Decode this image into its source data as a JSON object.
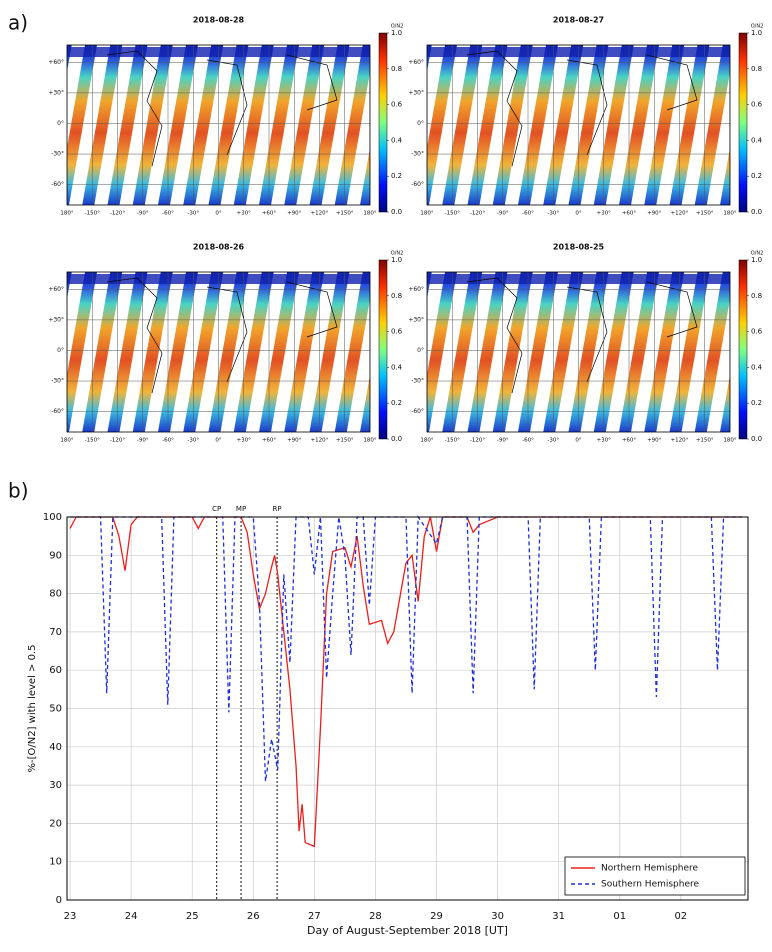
{
  "panel_labels": [
    "a)",
    "b)"
  ],
  "chart_data": [
    {
      "type": "map",
      "title": "2018-08-28",
      "colorbar_label": "O/N2",
      "clim": [
        0,
        1
      ],
      "cticks": [
        {
          "value": 0,
          "label": "0.0"
        },
        {
          "value": 0.2,
          "label": "0.2"
        },
        {
          "value": 0.4,
          "label": "0.4"
        },
        {
          "value": 0.6,
          "label": "0.6"
        },
        {
          "value": 0.8,
          "label": "0.8"
        },
        {
          "value": 1,
          "label": "1.0"
        }
      ],
      "xlim": [
        -180,
        180
      ],
      "ylim": [
        -80,
        77
      ],
      "xticks": [
        {
          "value": -180,
          "label": "180°"
        },
        {
          "value": -150,
          "label": "-150°"
        },
        {
          "value": -120,
          "label": "-120°"
        },
        {
          "value": -90,
          "label": "-90°"
        },
        {
          "value": -60,
          "label": "-60°"
        },
        {
          "value": -30,
          "label": "-30°"
        },
        {
          "value": 0,
          "label": "0°"
        },
        {
          "value": 30,
          "label": "+30°"
        },
        {
          "value": 60,
          "label": "+60°"
        },
        {
          "value": 90,
          "label": "+90°"
        },
        {
          "value": 120,
          "label": "+120°"
        },
        {
          "value": 150,
          "label": "+150°"
        },
        {
          "value": 180,
          "label": "180°"
        }
      ],
      "yticks": [
        {
          "value": 60,
          "label": "+60°"
        },
        {
          "value": 30,
          "label": "+30°"
        },
        {
          "value": 0,
          "label": "0°"
        },
        {
          "value": -30,
          "label": "-30°"
        },
        {
          "value": -60,
          "label": "-60°"
        }
      ]
    },
    {
      "type": "map",
      "title": "2018-08-27",
      "colorbar_label": "O/N2",
      "clim": [
        0,
        1
      ],
      "cticks": [
        {
          "value": 0,
          "label": "0.0"
        },
        {
          "value": 0.2,
          "label": "0.2"
        },
        {
          "value": 0.4,
          "label": "0.4"
        },
        {
          "value": 0.6,
          "label": "0.6"
        },
        {
          "value": 0.8,
          "label": "0.8"
        },
        {
          "value": 1,
          "label": "1.0"
        }
      ],
      "xlim": [
        -180,
        180
      ],
      "ylim": [
        -80,
        77
      ],
      "xticks": [
        {
          "value": -180,
          "label": "180°"
        },
        {
          "value": -150,
          "label": "-150°"
        },
        {
          "value": -120,
          "label": "-120°"
        },
        {
          "value": -90,
          "label": "-90°"
        },
        {
          "value": -60,
          "label": "-60°"
        },
        {
          "value": -30,
          "label": "-30°"
        },
        {
          "value": 0,
          "label": "0°"
        },
        {
          "value": 30,
          "label": "+30°"
        },
        {
          "value": 60,
          "label": "+60°"
        },
        {
          "value": 90,
          "label": "+90°"
        },
        {
          "value": 120,
          "label": "+120°"
        },
        {
          "value": 150,
          "label": "+150°"
        },
        {
          "value": 180,
          "label": "180°"
        }
      ],
      "yticks": [
        {
          "value": 60,
          "label": "+60°"
        },
        {
          "value": 30,
          "label": "+30°"
        },
        {
          "value": 0,
          "label": "0°"
        },
        {
          "value": -30,
          "label": "-30°"
        },
        {
          "value": -60,
          "label": "-60°"
        }
      ]
    },
    {
      "type": "map",
      "title": "2018-08-26",
      "colorbar_label": "O/N2",
      "clim": [
        0,
        1
      ],
      "cticks": [
        {
          "value": 0,
          "label": "0.0"
        },
        {
          "value": 0.2,
          "label": "0.2"
        },
        {
          "value": 0.4,
          "label": "0.4"
        },
        {
          "value": 0.6,
          "label": "0.6"
        },
        {
          "value": 0.8,
          "label": "0.8"
        },
        {
          "value": 1,
          "label": "1.0"
        }
      ],
      "xlim": [
        -180,
        180
      ],
      "ylim": [
        -80,
        77
      ],
      "xticks": [
        {
          "value": -180,
          "label": "180°"
        },
        {
          "value": -150,
          "label": "-150°"
        },
        {
          "value": -120,
          "label": "-120°"
        },
        {
          "value": -90,
          "label": "-90°"
        },
        {
          "value": -60,
          "label": "-60°"
        },
        {
          "value": -30,
          "label": "-30°"
        },
        {
          "value": 0,
          "label": "0°"
        },
        {
          "value": 30,
          "label": "+30°"
        },
        {
          "value": 60,
          "label": "+60°"
        },
        {
          "value": 90,
          "label": "+90°"
        },
        {
          "value": 120,
          "label": "+120°"
        },
        {
          "value": 150,
          "label": "+150°"
        },
        {
          "value": 180,
          "label": "180°"
        }
      ],
      "yticks": [
        {
          "value": 60,
          "label": "+60°"
        },
        {
          "value": 30,
          "label": "+30°"
        },
        {
          "value": 0,
          "label": "0°"
        },
        {
          "value": -30,
          "label": "-30°"
        },
        {
          "value": -60,
          "label": "-60°"
        }
      ]
    },
    {
      "type": "map",
      "title": "2018-08-25",
      "colorbar_label": "O/N2",
      "clim": [
        0,
        1
      ],
      "cticks": [
        {
          "value": 0,
          "label": "0.0"
        },
        {
          "value": 0.2,
          "label": "0.2"
        },
        {
          "value": 0.4,
          "label": "0.4"
        },
        {
          "value": 0.6,
          "label": "0.6"
        },
        {
          "value": 0.8,
          "label": "0.8"
        },
        {
          "value": 1,
          "label": "1.0"
        }
      ],
      "xlim": [
        -180,
        180
      ],
      "ylim": [
        -80,
        77
      ],
      "xticks": [
        {
          "value": -180,
          "label": "180°"
        },
        {
          "value": -150,
          "label": "-150°"
        },
        {
          "value": -120,
          "label": "-120°"
        },
        {
          "value": -90,
          "label": "-90°"
        },
        {
          "value": -60,
          "label": "-60°"
        },
        {
          "value": -30,
          "label": "-30°"
        },
        {
          "value": 0,
          "label": "0°"
        },
        {
          "value": 30,
          "label": "+30°"
        },
        {
          "value": 60,
          "label": "+60°"
        },
        {
          "value": 90,
          "label": "+90°"
        },
        {
          "value": 120,
          "label": "+120°"
        },
        {
          "value": 150,
          "label": "+150°"
        },
        {
          "value": 180,
          "label": "180°"
        }
      ],
      "yticks": [
        {
          "value": 60,
          "label": "+60°"
        },
        {
          "value": 30,
          "label": "+30°"
        },
        {
          "value": 0,
          "label": "0°"
        },
        {
          "value": -30,
          "label": "-30°"
        },
        {
          "value": -60,
          "label": "-60°"
        }
      ]
    },
    {
      "type": "line",
      "xlabel": "Day of August-September 2018 [UT]",
      "ylabel": "%-[O/N2] with level > 0.5",
      "xlim": [
        22.95,
        34.1
      ],
      "ylim": [
        0,
        100
      ],
      "xticks": [
        23,
        24,
        25,
        26,
        27,
        28,
        29,
        30,
        31,
        {
          "value": 32,
          "label": "01"
        },
        {
          "value": 33,
          "label": "02"
        }
      ],
      "yticks": [
        0,
        10,
        20,
        30,
        40,
        50,
        60,
        70,
        80,
        90,
        100
      ],
      "grid": true,
      "legend": "lower right",
      "annotations": [
        {
          "text": "CP",
          "x": 25.4
        },
        {
          "text": "MP",
          "x": 25.8
        },
        {
          "text": "RP",
          "x": 26.39
        }
      ],
      "series": [
        {
          "name": "Northern Hemisphere",
          "color": "#e8201e",
          "style": "solid",
          "x": [
            23.0,
            23.1,
            23.7,
            23.8,
            23.9,
            24.0,
            24.1,
            25.0,
            25.1,
            25.2,
            25.6,
            25.8,
            25.9,
            26.0,
            26.1,
            26.2,
            26.3,
            26.35,
            26.4,
            26.5,
            26.6,
            26.7,
            26.75,
            26.8,
            26.85,
            27.0,
            27.1,
            27.2,
            27.3,
            27.5,
            27.6,
            27.7,
            27.8,
            27.9,
            28.1,
            28.2,
            28.3,
            28.5,
            28.6,
            28.7,
            28.8,
            28.9,
            29.0,
            29.1,
            29.5,
            29.6,
            29.7,
            30.0,
            34.0
          ],
          "values": [
            97,
            100,
            100,
            95,
            86,
            98,
            100,
            100,
            97,
            100,
            100,
            100,
            96,
            85,
            76,
            80,
            87,
            90,
            85,
            70,
            55,
            35,
            18,
            25,
            15,
            14,
            45,
            80,
            91,
            92,
            87,
            95,
            82,
            72,
            73,
            67,
            70,
            88,
            90,
            78,
            95,
            100,
            91,
            100,
            100,
            96,
            98,
            100,
            100
          ]
        },
        {
          "name": "Southern Hemisphere",
          "color": "#1f2fd6",
          "style": "dash",
          "x": [
            23.0,
            23.5,
            23.6,
            23.7,
            24.5,
            24.6,
            24.7,
            25.5,
            25.6,
            25.7,
            26.0,
            26.1,
            26.2,
            26.3,
            26.4,
            26.5,
            26.6,
            26.7,
            26.9,
            27.0,
            27.1,
            27.2,
            27.3,
            27.4,
            27.5,
            27.6,
            27.7,
            27.8,
            27.9,
            28.0,
            28.5,
            28.6,
            28.7,
            29.0,
            29.1,
            29.5,
            29.6,
            29.7,
            30.5,
            30.6,
            30.7,
            31.5,
            31.6,
            31.7,
            32.5,
            32.6,
            32.7,
            33.5,
            33.6,
            33.7,
            34.0
          ],
          "values": [
            100,
            100,
            54,
            100,
            100,
            51,
            100,
            100,
            49,
            100,
            100,
            78,
            31,
            42,
            34,
            85,
            62,
            100,
            100,
            85,
            100,
            58,
            80,
            100,
            90,
            64,
            100,
            100,
            77,
            100,
            100,
            54,
            100,
            93,
            100,
            100,
            54,
            100,
            100,
            55,
            100,
            100,
            60,
            100,
            100,
            53,
            100,
            100,
            60,
            100,
            100
          ]
        }
      ]
    }
  ]
}
